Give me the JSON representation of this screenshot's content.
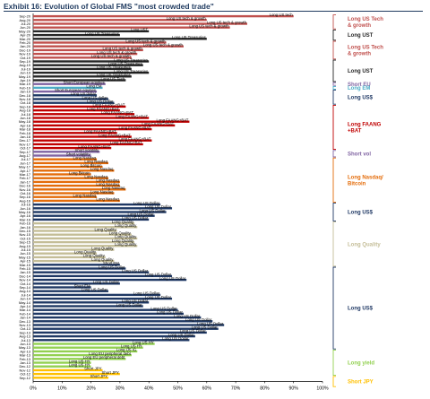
{
  "title": "Exhibit 16: Evolution of Global FMS \"most crowded trade\"",
  "chart_data": {
    "type": "bar",
    "orientation": "horizontal",
    "xlim": [
      0,
      100
    ],
    "x_ticks": [
      "0%",
      "10%",
      "20%",
      "30%",
      "40%",
      "50%",
      "60%",
      "70%",
      "80%",
      "90%",
      "100%"
    ],
    "rows": [
      {
        "date": "Sep-20",
        "value": 90,
        "label": "Long US tech",
        "color": "#c0504d"
      },
      {
        "date": "Aug-20",
        "value": 60,
        "label": "Long US tech & growth",
        "color": "#c0504d"
      },
      {
        "date": "Jul-20",
        "value": 74,
        "label": "Long US tech & growth",
        "color": "#c0504d"
      },
      {
        "date": "Jun-20",
        "value": 68,
        "label": "Long US tech & growth",
        "color": "#c0504d"
      },
      {
        "date": "May-20",
        "value": 40,
        "label": "Long UST",
        "color": "#262626"
      },
      {
        "date": "Apr-20",
        "value": 30,
        "label": "Long US Treasuries",
        "color": "#262626"
      },
      {
        "date": "Mar-20",
        "value": 60,
        "label": "Long US Treasuries",
        "color": "#262626"
      },
      {
        "date": "Feb-20",
        "value": 46,
        "label": "Long US tech & growth",
        "color": "#c0504d"
      },
      {
        "date": "Jan-20",
        "value": 52,
        "label": "Long US tech & growth",
        "color": "#c0504d"
      },
      {
        "date": "Dec-19",
        "value": 38,
        "label": "Long US tech & growth",
        "color": "#c0504d"
      },
      {
        "date": "Nov-19",
        "value": 36,
        "label": "Long US tech & growth",
        "color": "#c0504d"
      },
      {
        "date": "Oct-19",
        "value": 34,
        "label": "Long US tech & growth",
        "color": "#c0504d"
      },
      {
        "date": "Sep-19",
        "value": 40,
        "label": "Long US Treasuries",
        "color": "#262626"
      },
      {
        "date": "Aug-19",
        "value": 38,
        "label": "Long US Treasuries",
        "color": "#262626"
      },
      {
        "date": "Jul-19",
        "value": 34,
        "label": "Long US Treasuries",
        "color": "#262626"
      },
      {
        "date": "Jun-19",
        "value": 40,
        "label": "Long US Treasuries",
        "color": "#262626"
      },
      {
        "date": "May-19",
        "value": 34,
        "label": "Long US Treasuries",
        "color": "#262626"
      },
      {
        "date": "Apr-19",
        "value": 32,
        "label": "Long US Tech",
        "color": "#262626"
      },
      {
        "date": "Mar-19",
        "value": 25,
        "label": "Short European equities",
        "color": "#8064a2"
      },
      {
        "date": "Feb-19",
        "value": 24,
        "label": "Long EM",
        "color": "#4bacc6"
      },
      {
        "date": "Jan-19",
        "value": 22,
        "label": "Short European equities",
        "color": "#8064a2"
      },
      {
        "date": "Dec-18",
        "value": 22,
        "label": "Long US dollar",
        "color": "#1f3864"
      },
      {
        "date": "Nov-18",
        "value": 26,
        "label": "Long US dollar",
        "color": "#1f3864"
      },
      {
        "date": "Oct-18",
        "value": 28,
        "label": "Long US Dollar",
        "color": "#1f3864"
      },
      {
        "date": "Sep-18",
        "value": 32,
        "label": "Long FAANG+BAT",
        "color": "#c00000"
      },
      {
        "date": "Aug-18",
        "value": 30,
        "label": "Long FAANG+BAT",
        "color": "#c00000"
      },
      {
        "date": "Jul-18",
        "value": 35,
        "label": "Long FAANG+BAT",
        "color": "#c00000"
      },
      {
        "date": "Jun-18",
        "value": 40,
        "label": "Long FAANG+BAT",
        "color": "#c00000"
      },
      {
        "date": "May-18",
        "value": 54,
        "label": "Long FAANG+BAT",
        "color": "#c00000"
      },
      {
        "date": "Apr-18",
        "value": 49,
        "label": "Long FAANG+BAT",
        "color": "#c00000"
      },
      {
        "date": "Mar-18",
        "value": 41,
        "label": "Long FAANG+BAT",
        "color": "#c00000"
      },
      {
        "date": "Feb-18",
        "value": 29,
        "label": "Long FAANG+BAT",
        "color": "#c00000"
      },
      {
        "date": "Jan-18",
        "value": 34,
        "label": "Long FAANG+BAT",
        "color": "#c00000"
      },
      {
        "date": "Dec-17",
        "value": 41,
        "label": "Long FAANG+BAT",
        "color": "#c00000"
      },
      {
        "date": "Nov-17",
        "value": 38,
        "label": "Long FAANG+BAT",
        "color": "#c00000"
      },
      {
        "date": "Oct-17",
        "value": 27,
        "label": "Long FAANG+BAT",
        "color": "#c00000"
      },
      {
        "date": "Sep-17",
        "value": 23,
        "label": "Short volatility",
        "color": "#8064a2"
      },
      {
        "date": "Aug-17",
        "value": 20,
        "label": "Short volatility",
        "color": "#8064a2"
      },
      {
        "date": "Jul-17",
        "value": 22,
        "label": "Long Nasdaq",
        "color": "#e46c0a"
      },
      {
        "date": "Jun-17",
        "value": 26,
        "label": "Long Nasdaq",
        "color": "#e46c0a"
      },
      {
        "date": "May-17",
        "value": 24,
        "label": "Long Bitcoin",
        "color": "#e46c0a"
      },
      {
        "date": "Apr-17",
        "value": 28,
        "label": "Long Nasdaq",
        "color": "#e46c0a"
      },
      {
        "date": "Mar-17",
        "value": 20,
        "label": "Long Bitcoin",
        "color": "#e46c0a"
      },
      {
        "date": "Feb-17",
        "value": 26,
        "label": "Long Nasdaq",
        "color": "#e46c0a"
      },
      {
        "date": "Jan-17",
        "value": 30,
        "label": "Long Nasdaq",
        "color": "#e46c0a"
      },
      {
        "date": "Dec-16",
        "value": 30,
        "label": "Long Nasdaq",
        "color": "#e46c0a"
      },
      {
        "date": "Nov-16",
        "value": 32,
        "label": "Long Nasdaq",
        "color": "#e46c0a"
      },
      {
        "date": "Oct-16",
        "value": 28,
        "label": "Long Nasdaq",
        "color": "#e46c0a"
      },
      {
        "date": "Sep-16",
        "value": 22,
        "label": "Long Nasdaq",
        "color": "#e46c0a"
      },
      {
        "date": "Aug-16",
        "value": 30,
        "label": "Long Nasdaq",
        "color": "#e46c0a"
      },
      {
        "date": "Jul-16",
        "value": 44,
        "label": "Long US Dollar",
        "color": "#1f3864"
      },
      {
        "date": "Jun-16",
        "value": 48,
        "label": "Long US Dollar",
        "color": "#1f3864"
      },
      {
        "date": "May-16",
        "value": 46,
        "label": "Long US Dollar",
        "color": "#1f3864"
      },
      {
        "date": "Apr-16",
        "value": 42,
        "label": "Long US Dollar",
        "color": "#1f3864"
      },
      {
        "date": "Mar-16",
        "value": 40,
        "label": "Long US Dollar",
        "color": "#1f3864"
      },
      {
        "date": "Feb-16",
        "value": 35,
        "label": "Long Quality",
        "color": "#c4bd97"
      },
      {
        "date": "Jan-16",
        "value": 36,
        "label": "Long Quality",
        "color": "#c4bd97"
      },
      {
        "date": "Dec-15",
        "value": 29,
        "label": "Long Quality",
        "color": "#c4bd97"
      },
      {
        "date": "Nov-15",
        "value": 34,
        "label": "Long Quality",
        "color": "#c4bd97"
      },
      {
        "date": "Oct-15",
        "value": 36,
        "label": "Long Quality",
        "color": "#c4bd97"
      },
      {
        "date": "Sep-15",
        "value": 35,
        "label": "Long Quality",
        "color": "#c4bd97"
      },
      {
        "date": "Aug-15",
        "value": 36,
        "label": "Long Quality",
        "color": "#c4bd97"
      },
      {
        "date": "Jul-15",
        "value": 28,
        "label": "Long Quality",
        "color": "#c4bd97"
      },
      {
        "date": "Jun-15",
        "value": 22,
        "label": "Long Quality",
        "color": "#c4bd97"
      },
      {
        "date": "May-15",
        "value": 25,
        "label": "Long Quality",
        "color": "#c4bd97"
      },
      {
        "date": "Apr-15",
        "value": 28,
        "label": "Long Quality",
        "color": "#c4bd97"
      },
      {
        "date": "Mar-15",
        "value": 30,
        "label": "Short EM",
        "color": "#1f3864"
      },
      {
        "date": "Feb-15",
        "value": 32,
        "label": "Long US Dollar",
        "color": "#1f3864"
      },
      {
        "date": "Jan-15",
        "value": 40,
        "label": "Long US Dollar",
        "color": "#1f3864"
      },
      {
        "date": "Dec-14",
        "value": 48,
        "label": "Long US Dollar",
        "color": "#1f3864"
      },
      {
        "date": "Nov-14",
        "value": 53,
        "label": "Long US Dollar",
        "color": "#1f3864"
      },
      {
        "date": "Oct-14",
        "value": 30,
        "label": "Long US Dollar",
        "color": "#1f3864"
      },
      {
        "date": "Sep-14",
        "value": 20,
        "label": "Short EM",
        "color": "#1f3864"
      },
      {
        "date": "Aug-14",
        "value": 26,
        "label": "Long US Dollar",
        "color": "#1f3864"
      },
      {
        "date": "Jul-14",
        "value": 44,
        "label": "Long US Dollar",
        "color": "#1f3864"
      },
      {
        "date": "Jun-14",
        "value": 48,
        "label": "Long US Dollar",
        "color": "#1f3864"
      },
      {
        "date": "May-14",
        "value": 40,
        "label": "Long US Dollar",
        "color": "#1f3864"
      },
      {
        "date": "Apr-14",
        "value": 38,
        "label": "Long US Dollar",
        "color": "#1f3864"
      },
      {
        "date": "Mar-14",
        "value": 50,
        "label": "Long US Dollar",
        "color": "#1f3864"
      },
      {
        "date": "Feb-14",
        "value": 52,
        "label": "Long US Dollar",
        "color": "#1f3864"
      },
      {
        "date": "Jan-14",
        "value": 58,
        "label": "Long US Dollar",
        "color": "#1f3864"
      },
      {
        "date": "Dec-13",
        "value": 62,
        "label": "Long US Dollar",
        "color": "#1f3864"
      },
      {
        "date": "Nov-13",
        "value": 66,
        "label": "Long US Dollar",
        "color": "#1f3864"
      },
      {
        "date": "Oct-13",
        "value": 64,
        "label": "Long US Dollar",
        "color": "#1f3864"
      },
      {
        "date": "Sep-13",
        "value": 60,
        "label": "Long US Dollar",
        "color": "#1f3864"
      },
      {
        "date": "Aug-13",
        "value": 56,
        "label": "Long US Dollar",
        "color": "#1f3864"
      },
      {
        "date": "Jul-13",
        "value": 54,
        "label": "Long US Dollar",
        "color": "#1f3864"
      },
      {
        "date": "Jun-13",
        "value": 42,
        "label": "Long US HY",
        "color": "#92d050"
      },
      {
        "date": "May-13",
        "value": 38,
        "label": "Long US HY",
        "color": "#92d050"
      },
      {
        "date": "Apr-13",
        "value": 36,
        "label": "Long US IG",
        "color": "#92d050"
      },
      {
        "date": "Mar-13",
        "value": 34,
        "label": "Long EU peripheral debt",
        "color": "#92d050"
      },
      {
        "date": "Feb-13",
        "value": 32,
        "label": "Long EU peripheral debt",
        "color": "#92d050"
      },
      {
        "date": "Jan-13",
        "value": 20,
        "label": "Long US HY",
        "color": "#92d050"
      },
      {
        "date": "Dec-12",
        "value": 20,
        "label": "Long US HY",
        "color": "#92d050"
      },
      {
        "date": "Nov-12",
        "value": 24,
        "label": "Short JPY",
        "color": "#ffc000"
      },
      {
        "date": "Oct-12",
        "value": 30,
        "label": "Short JPY",
        "color": "#ffc000"
      },
      {
        "date": "Sep-12",
        "value": 26,
        "label": "Short JPY",
        "color": "#ffc000"
      }
    ],
    "groups": [
      {
        "label": "Long US Tech & growth",
        "start": 0,
        "end": 3,
        "color": "#c0504d"
      },
      {
        "label": "Long UST",
        "start": 4,
        "end": 6,
        "color": "#262626"
      },
      {
        "label": "Long US Tech & growth",
        "start": 7,
        "end": 11,
        "color": "#c0504d"
      },
      {
        "label": "Long UST",
        "start": 12,
        "end": 17,
        "color": "#262626"
      },
      {
        "label": "Short EU",
        "start": 18,
        "end": 18,
        "color": "#8064a2"
      },
      {
        "label": "Long EM",
        "start": 19,
        "end": 19,
        "color": "#4bacc6"
      },
      {
        "label": "Long US$",
        "start": 20,
        "end": 23,
        "color": "#1f3864"
      },
      {
        "label": "Long FAANG +BAT",
        "start": 24,
        "end": 35,
        "color": "#c00000"
      },
      {
        "label": "Short vol",
        "start": 36,
        "end": 37,
        "color": "#8064a2"
      },
      {
        "label": "Long Nasdaq/ Bitcoin",
        "start": 38,
        "end": 49,
        "color": "#e46c0a"
      },
      {
        "label": "Long US$",
        "start": 50,
        "end": 54,
        "color": "#1f3864"
      },
      {
        "label": "Long Quality",
        "start": 55,
        "end": 66,
        "color": "#c4bd97"
      },
      {
        "label": "Long US$",
        "start": 67,
        "end": 88,
        "color": "#1f3864"
      },
      {
        "label": "Long yield",
        "start": 89,
        "end": 95,
        "color": "#92d050"
      },
      {
        "label": "Short JPY",
        "start": 96,
        "end": 98,
        "color": "#ffc000"
      }
    ]
  }
}
